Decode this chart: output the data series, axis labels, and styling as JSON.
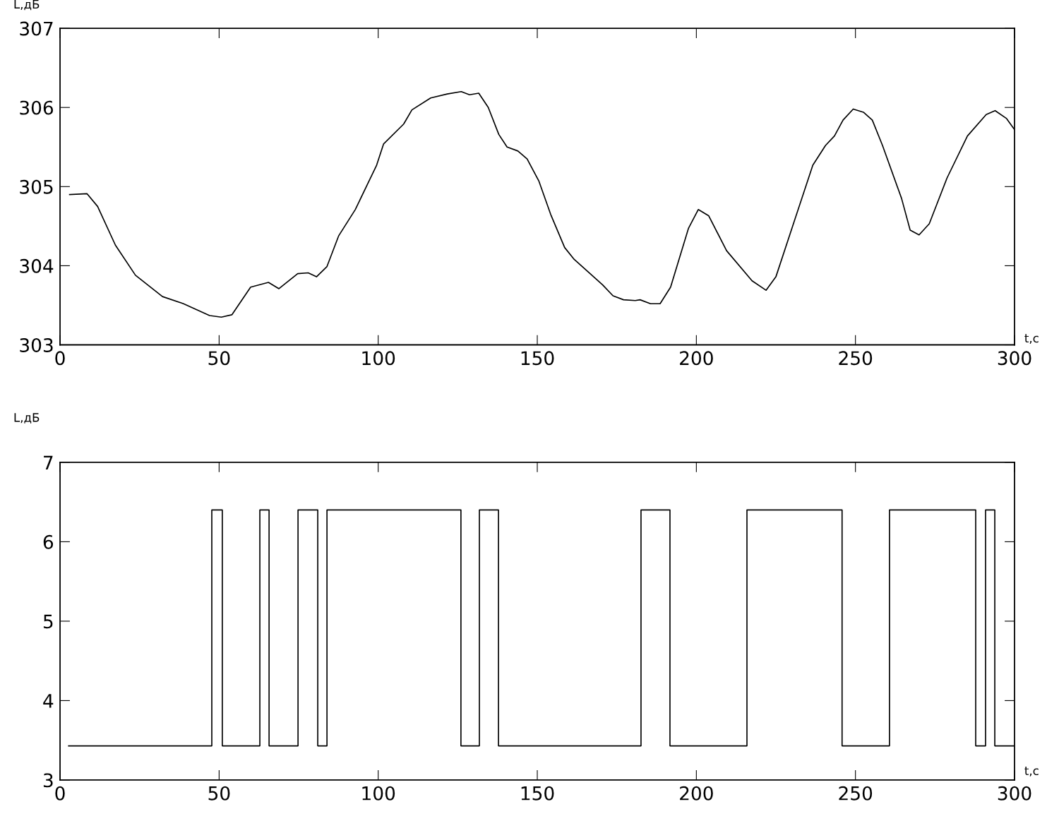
{
  "chart_data": [
    {
      "type": "line",
      "xlabel": "t,c",
      "ylabel": "L,дБ",
      "xlim": [
        0,
        300
      ],
      "ylim": [
        303,
        307
      ],
      "xticks": [
        0,
        50,
        100,
        150,
        200,
        250,
        300
      ],
      "yticks": [
        303,
        304,
        305,
        306,
        307
      ],
      "grid": false,
      "marker": "none",
      "line_style": "solid",
      "series": [
        {
          "color": "#000000",
          "x": [
            3.0,
            8.5,
            11.8,
            17.4,
            23.7,
            32.2,
            38.8,
            47.0,
            50.7,
            54.0,
            59.9,
            65.5,
            68.8,
            74.7,
            78.0,
            80.6,
            83.9,
            87.6,
            92.8,
            99.5,
            101.7,
            108.0,
            110.6,
            116.5,
            121.7,
            126.1,
            128.7,
            131.6,
            134.6,
            137.9,
            140.5,
            143.9,
            146.8,
            150.5,
            154.2,
            158.6,
            161.6,
            170.5,
            173.8,
            177.1,
            180.8,
            182.3,
            185.6,
            188.6,
            191.9,
            197.5,
            200.6,
            203.9,
            209.5,
            217.5,
            221.9,
            225.0,
            231.0,
            236.6,
            240.6,
            243.4,
            246.1,
            249.3,
            252.5,
            255.3,
            258.5,
            264.5,
            267.2,
            270.0,
            273.2,
            278.8,
            285.2,
            291.1,
            293.9,
            297.5,
            300
          ],
          "values": [
            304.9,
            304.91,
            304.75,
            304.26,
            303.88,
            303.61,
            303.52,
            303.37,
            303.35,
            303.38,
            303.73,
            303.79,
            303.71,
            303.9,
            303.91,
            303.86,
            303.99,
            304.38,
            304.71,
            305.27,
            305.54,
            305.79,
            305.97,
            306.12,
            306.17,
            306.2,
            306.16,
            306.18,
            306.0,
            305.66,
            305.5,
            305.45,
            305.35,
            305.07,
            304.65,
            304.23,
            304.08,
            303.76,
            303.62,
            303.57,
            303.56,
            303.57,
            303.52,
            303.52,
            303.73,
            304.47,
            304.71,
            304.63,
            304.19,
            303.81,
            303.69,
            303.86,
            304.59,
            305.27,
            305.52,
            305.64,
            305.84,
            305.98,
            305.94,
            305.84,
            305.52,
            304.85,
            304.45,
            304.39,
            304.53,
            305.11,
            305.64,
            305.91,
            305.96,
            305.86,
            305.72
          ]
        }
      ]
    },
    {
      "type": "step",
      "xlabel": "t,c",
      "ylabel": "L,дБ",
      "xlim": [
        0,
        300
      ],
      "ylim": [
        3,
        7
      ],
      "xticks": [
        0,
        50,
        100,
        150,
        200,
        250,
        300
      ],
      "yticks": [
        3,
        4,
        5,
        6,
        7
      ],
      "grid": false,
      "marker": "none",
      "line_style": "solid",
      "series": [
        {
          "color": "#000000",
          "x": [
            2.7,
            47.7,
            51.0,
            62.8,
            65.7,
            74.8,
            81.0,
            83.9,
            126.0,
            131.8,
            137.8,
            182.6,
            191.7,
            215.9,
            245.8,
            260.7,
            287.8,
            290.9,
            293.8,
            300
          ],
          "values": [
            3.43,
            6.4,
            3.43,
            6.4,
            3.43,
            6.4,
            3.43,
            6.4,
            3.43,
            6.4,
            3.43,
            6.4,
            3.43,
            6.4,
            3.43,
            6.4,
            3.43,
            6.4,
            3.43,
            3.43
          ]
        }
      ]
    }
  ]
}
